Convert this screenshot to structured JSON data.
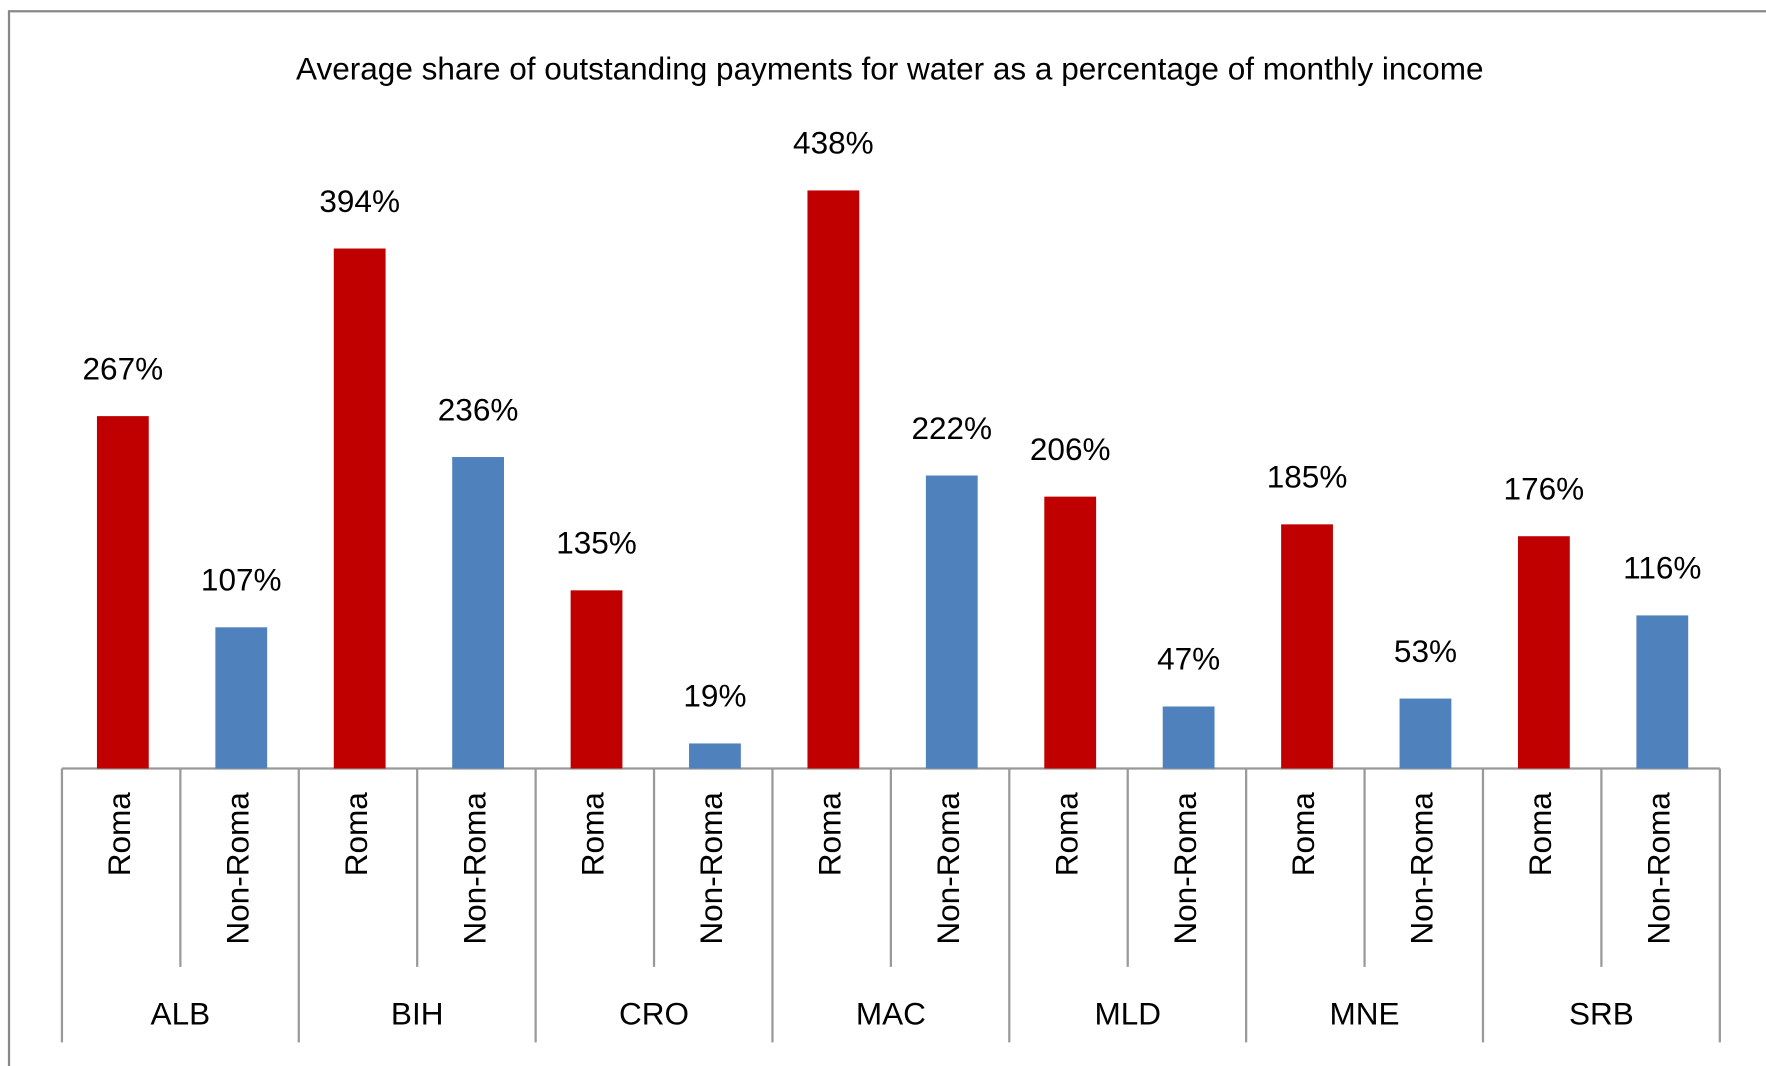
{
  "chart_data": {
    "type": "bar",
    "title": "Average share of outstanding payments for water as a percentage of monthly income",
    "categories": [
      "ALB",
      "BIH",
      "CRO",
      "MAC",
      "MLD",
      "MNE",
      "SRB"
    ],
    "series": [
      {
        "name": "Roma",
        "color": "#c00000",
        "values": [
          267,
          394,
          135,
          438,
          206,
          185,
          176
        ],
        "value_labels": [
          "267%",
          "394%",
          "135%",
          "438%",
          "206%",
          "185%",
          "176%"
        ]
      },
      {
        "name": "Non-Roma",
        "color": "#4f81bd",
        "values": [
          107,
          236,
          19,
          222,
          47,
          53,
          116
        ],
        "value_labels": [
          "107%",
          "236%",
          "19%",
          "222%",
          "47%",
          "53%",
          "116%"
        ]
      }
    ]
  }
}
